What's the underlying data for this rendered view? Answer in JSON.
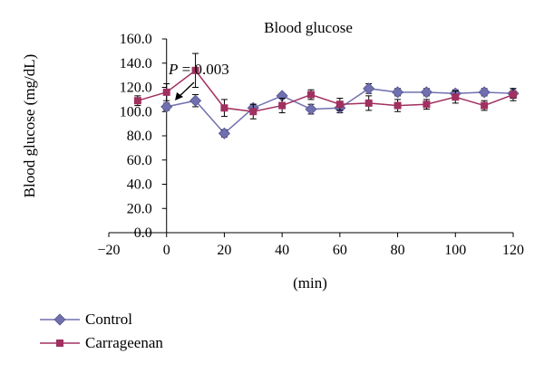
{
  "chart_data": {
    "type": "line",
    "title": "Blood glucose",
    "xlabel": "(min)",
    "ylabel": "Blood glucose (mg/dL)",
    "xlim": [
      -20,
      120
    ],
    "ylim": [
      0,
      160
    ],
    "x_ticks": [
      "−20",
      "0",
      "20",
      "40",
      "60",
      "80",
      "100",
      "120"
    ],
    "y_ticks": [
      "0.0",
      "20.0",
      "40.0",
      "60.0",
      "80.0",
      "100.0",
      "120.0",
      "140.0",
      "160.0"
    ],
    "legend_position": "bottom-left",
    "annotation": {
      "italic": "P",
      "rest": " = 0.003",
      "x": 20,
      "y": 103
    },
    "series": [
      {
        "name": "Control",
        "color": "#7070b0",
        "marker": "diamond",
        "x": [
          0,
          10,
          20,
          30,
          40,
          50,
          60,
          70,
          80,
          90,
          100,
          110,
          120
        ],
        "y": [
          104,
          109,
          82,
          103,
          113,
          102,
          103,
          119,
          116,
          116,
          115,
          116,
          115
        ],
        "err": [
          3,
          5,
          3,
          3,
          2,
          4,
          4,
          4,
          3,
          3,
          3,
          3,
          4
        ]
      },
      {
        "name": "Carrageenan",
        "color": "#a03060",
        "marker": "square",
        "x": [
          -10,
          0,
          10,
          20,
          30,
          40,
          50,
          60,
          70,
          80,
          90,
          100,
          110,
          120
        ],
        "y": [
          109,
          116,
          134,
          103,
          100,
          105,
          114,
          106,
          107,
          105,
          106,
          112,
          105,
          114
        ],
        "err": [
          4,
          7,
          14,
          7,
          6,
          6,
          4,
          5,
          6,
          5,
          4,
          5,
          4,
          5
        ]
      }
    ]
  }
}
